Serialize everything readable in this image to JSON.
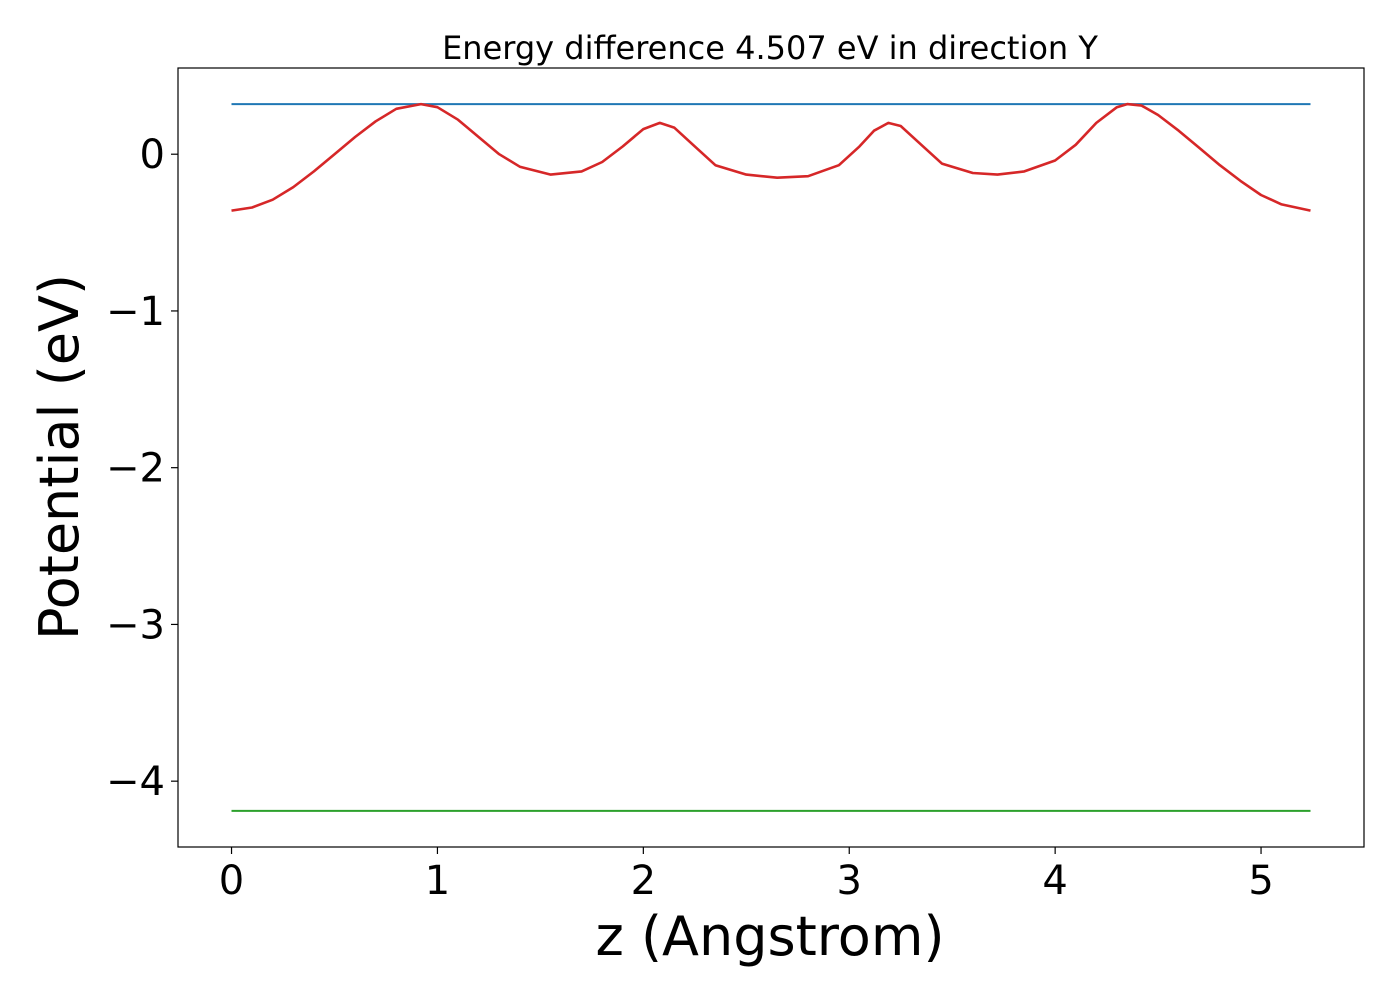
{
  "chart_data": {
    "type": "line",
    "title": "Energy difference 4.507 eV in direction Y",
    "xlabel": "z (Angstrom)",
    "ylabel": "Potential (eV)",
    "xlim": [
      -0.26,
      5.5
    ],
    "ylim": [
      -4.42,
      0.55
    ],
    "x_ticks": [
      0,
      1,
      2,
      3,
      4,
      5
    ],
    "x_tick_labels": [
      "0",
      "1",
      "2",
      "3",
      "4",
      "5"
    ],
    "y_ticks": [
      0,
      -1,
      -2,
      -3,
      -4
    ],
    "y_tick_labels": [
      "0",
      "−1",
      "−2",
      "−3",
      "−4"
    ],
    "grid": false,
    "series": [
      {
        "color": "#1f77b4",
        "x": [
          0,
          5.24
        ],
        "y": [
          0.32,
          0.32
        ]
      },
      {
        "color": "#d62728",
        "x": [
          0,
          0.1,
          0.2,
          0.3,
          0.4,
          0.5,
          0.6,
          0.7,
          0.8,
          0.92,
          1.0,
          1.1,
          1.2,
          1.3,
          1.4,
          1.55,
          1.7,
          1.8,
          1.9,
          2.0,
          2.08,
          2.15,
          2.25,
          2.35,
          2.5,
          2.65,
          2.8,
          2.95,
          3.05,
          3.12,
          3.19,
          3.25,
          3.35,
          3.45,
          3.6,
          3.72,
          3.85,
          4.0,
          4.1,
          4.2,
          4.3,
          4.35,
          4.42,
          4.5,
          4.6,
          4.7,
          4.8,
          4.9,
          5.0,
          5.1,
          5.24
        ],
        "y": [
          -0.36,
          -0.34,
          -0.29,
          -0.21,
          -0.11,
          0.0,
          0.11,
          0.21,
          0.29,
          0.32,
          0.3,
          0.22,
          0.11,
          0.0,
          -0.08,
          -0.13,
          -0.11,
          -0.05,
          0.05,
          0.16,
          0.2,
          0.17,
          0.05,
          -0.07,
          -0.13,
          -0.15,
          -0.14,
          -0.07,
          0.05,
          0.15,
          0.2,
          0.18,
          0.06,
          -0.06,
          -0.12,
          -0.13,
          -0.11,
          -0.04,
          0.06,
          0.2,
          0.3,
          0.32,
          0.31,
          0.25,
          0.15,
          0.04,
          -0.07,
          -0.17,
          -0.26,
          -0.32,
          -0.36
        ]
      },
      {
        "color": "#2ca02c",
        "x": [
          0,
          5.24
        ],
        "y": [
          -4.19,
          -4.19
        ]
      }
    ]
  }
}
